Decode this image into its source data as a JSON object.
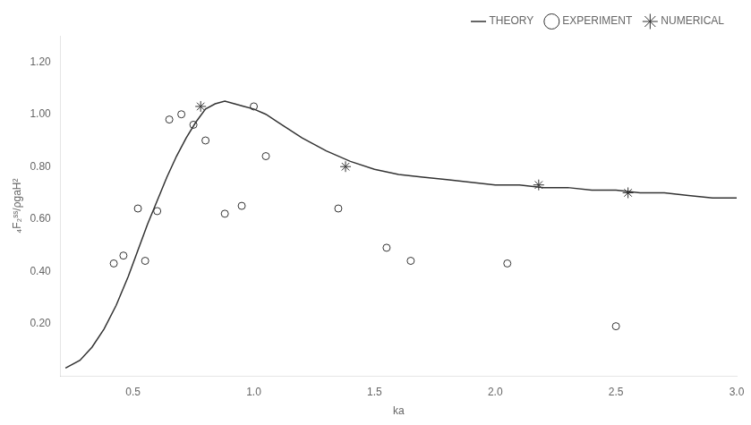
{
  "chart_data": {
    "type": "scatter",
    "xlabel": "ka",
    "ylabel": "₄F₂ˢˢ/ρgaH²",
    "xlim": [
      0.2,
      3.0
    ],
    "ylim": [
      0.0,
      1.3
    ],
    "xticks": [
      0.5,
      {
        "value": 1.0,
        "label": "1.0"
      },
      1.5,
      {
        "value": 2.0,
        "label": "2.0"
      },
      2.5,
      {
        "value": 3.0,
        "label": "3.0"
      }
    ],
    "yticks": [
      {
        "value": 0.2,
        "label": "0.20"
      },
      {
        "value": 0.4,
        "label": "0.40"
      },
      {
        "value": 0.6,
        "label": "0.60"
      },
      {
        "value": 0.8,
        "label": "0.80"
      },
      {
        "value": 1.0,
        "label": "1.00"
      },
      {
        "value": 1.2,
        "label": "1.20"
      }
    ],
    "grid": false,
    "legend": "upper right",
    "series": [
      {
        "name": "THEORY",
        "type": "line",
        "color": "#333333",
        "marker": "none",
        "line_style": "solid",
        "x": [
          0.22,
          0.28,
          0.33,
          0.38,
          0.43,
          0.48,
          0.52,
          0.56,
          0.6,
          0.64,
          0.68,
          0.72,
          0.76,
          0.8,
          0.84,
          0.88,
          0.92,
          0.96,
          1.0,
          1.05,
          1.1,
          1.15,
          1.2,
          1.3,
          1.4,
          1.5,
          1.6,
          1.7,
          1.8,
          1.9,
          2.0,
          2.1,
          2.2,
          2.3,
          2.4,
          2.5,
          2.6,
          2.7,
          2.8,
          2.9,
          3.0
        ],
        "values": [
          0.03,
          0.06,
          0.11,
          0.18,
          0.27,
          0.38,
          0.48,
          0.58,
          0.67,
          0.76,
          0.84,
          0.91,
          0.97,
          1.02,
          1.04,
          1.05,
          1.04,
          1.03,
          1.02,
          1.0,
          0.97,
          0.94,
          0.91,
          0.86,
          0.82,
          0.79,
          0.77,
          0.76,
          0.75,
          0.74,
          0.73,
          0.73,
          0.72,
          0.72,
          0.71,
          0.71,
          0.7,
          0.7,
          0.69,
          0.68,
          0.68
        ]
      },
      {
        "name": "EXPERIMENT",
        "type": "scatter",
        "color": "#333333",
        "marker": "circle",
        "x": [
          0.42,
          0.46,
          0.52,
          0.55,
          0.6,
          0.65,
          0.7,
          0.75,
          0.8,
          0.88,
          0.95,
          1.0,
          1.05,
          1.35,
          1.55,
          1.65,
          2.05,
          2.5
        ],
        "values": [
          0.43,
          0.46,
          0.64,
          0.44,
          0.63,
          0.98,
          1.0,
          0.96,
          0.9,
          0.62,
          0.65,
          1.03,
          0.84,
          0.64,
          0.49,
          0.44,
          0.43,
          0.19
        ]
      },
      {
        "name": "NUMERICAL",
        "type": "scatter",
        "color": "#333333",
        "marker": "star",
        "x": [
          0.78,
          1.38,
          2.18,
          2.55
        ],
        "values": [
          1.03,
          0.8,
          0.73,
          0.7
        ]
      }
    ]
  }
}
